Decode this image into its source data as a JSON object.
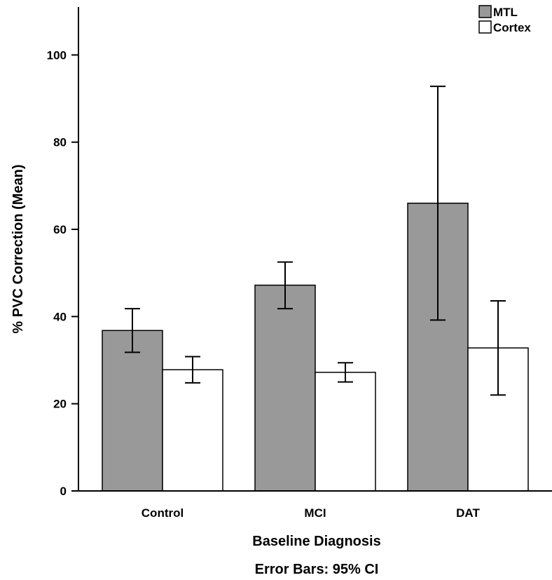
{
  "chart_data": {
    "type": "bar",
    "categories": [
      "Control",
      "MCI",
      "DAT"
    ],
    "series": [
      {
        "name": "MTL",
        "color": "#999999",
        "values": [
          36.8,
          47.2,
          66.0
        ],
        "ci_low": [
          31.8,
          41.8,
          39.2
        ],
        "ci_high": [
          41.8,
          52.5,
          92.8
        ]
      },
      {
        "name": "Cortex",
        "color": "#ffffff",
        "values": [
          27.8,
          27.2,
          32.8
        ],
        "ci_low": [
          24.8,
          25.0,
          22.0
        ],
        "ci_high": [
          30.8,
          29.4,
          43.6
        ]
      }
    ],
    "xlabel": "Baseline Diagnosis",
    "ylabel": "% PVC Correction (Mean)",
    "caption": "Error Bars: 95% CI",
    "ylim": [
      0,
      111
    ],
    "yticks": [
      0,
      20,
      40,
      60,
      80,
      100
    ],
    "legend_position": "top-right",
    "grid": false
  }
}
